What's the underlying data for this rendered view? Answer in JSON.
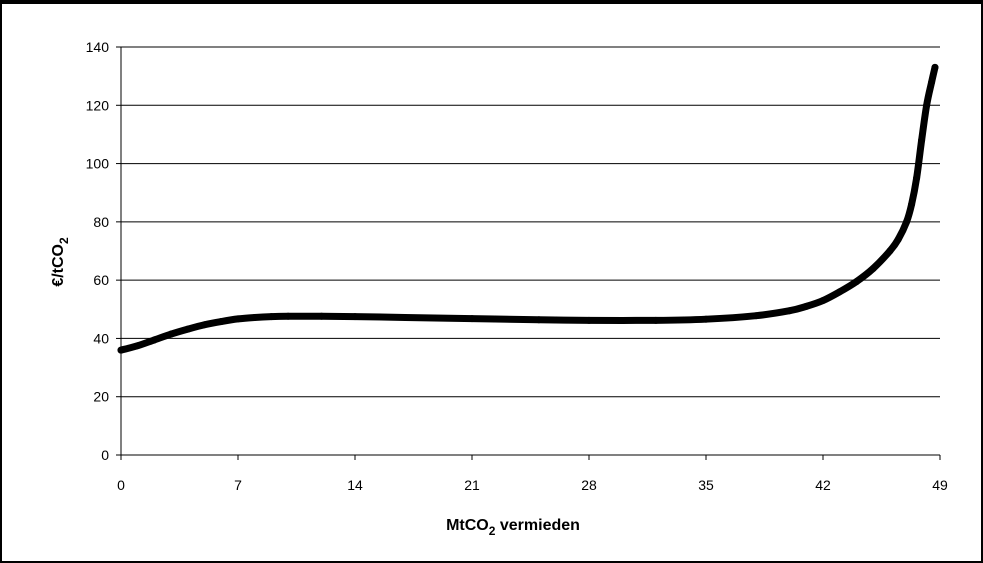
{
  "chart_data": {
    "type": "line",
    "title": "",
    "xlabel": "MtCO2 vermieden",
    "xlabel_parts": [
      "MtCO",
      "2",
      " vermieden"
    ],
    "ylabel": "€/tCO2",
    "ylabel_parts": [
      "€/tCO",
      "2"
    ],
    "xlim": [
      0,
      49
    ],
    "ylim": [
      0,
      140
    ],
    "x_ticks": [
      0,
      7,
      14,
      21,
      28,
      35,
      42,
      49
    ],
    "y_ticks": [
      0,
      20,
      40,
      60,
      80,
      100,
      120,
      140
    ],
    "grid": "horizontal",
    "legend": "none",
    "series": [
      {
        "color": "#000000",
        "x": [
          0,
          1,
          2,
          3,
          4,
          5,
          6,
          7,
          8,
          9,
          10,
          12,
          14,
          17,
          21,
          25,
          28,
          32,
          35,
          38,
          40,
          41,
          42,
          43,
          44,
          45,
          46,
          46.5,
          47,
          47.3,
          47.6,
          47.9,
          48.2,
          48.5,
          48.7
        ],
        "y": [
          36,
          37.5,
          39.5,
          41.5,
          43.2,
          44.7,
          45.8,
          46.7,
          47.2,
          47.5,
          47.6,
          47.6,
          47.5,
          47.2,
          46.8,
          46.4,
          46.2,
          46.2,
          46.6,
          47.8,
          49.5,
          51,
          53,
          56,
          59.5,
          64,
          70,
          74,
          80,
          86,
          95,
          108,
          120,
          128,
          133
        ]
      }
    ]
  }
}
